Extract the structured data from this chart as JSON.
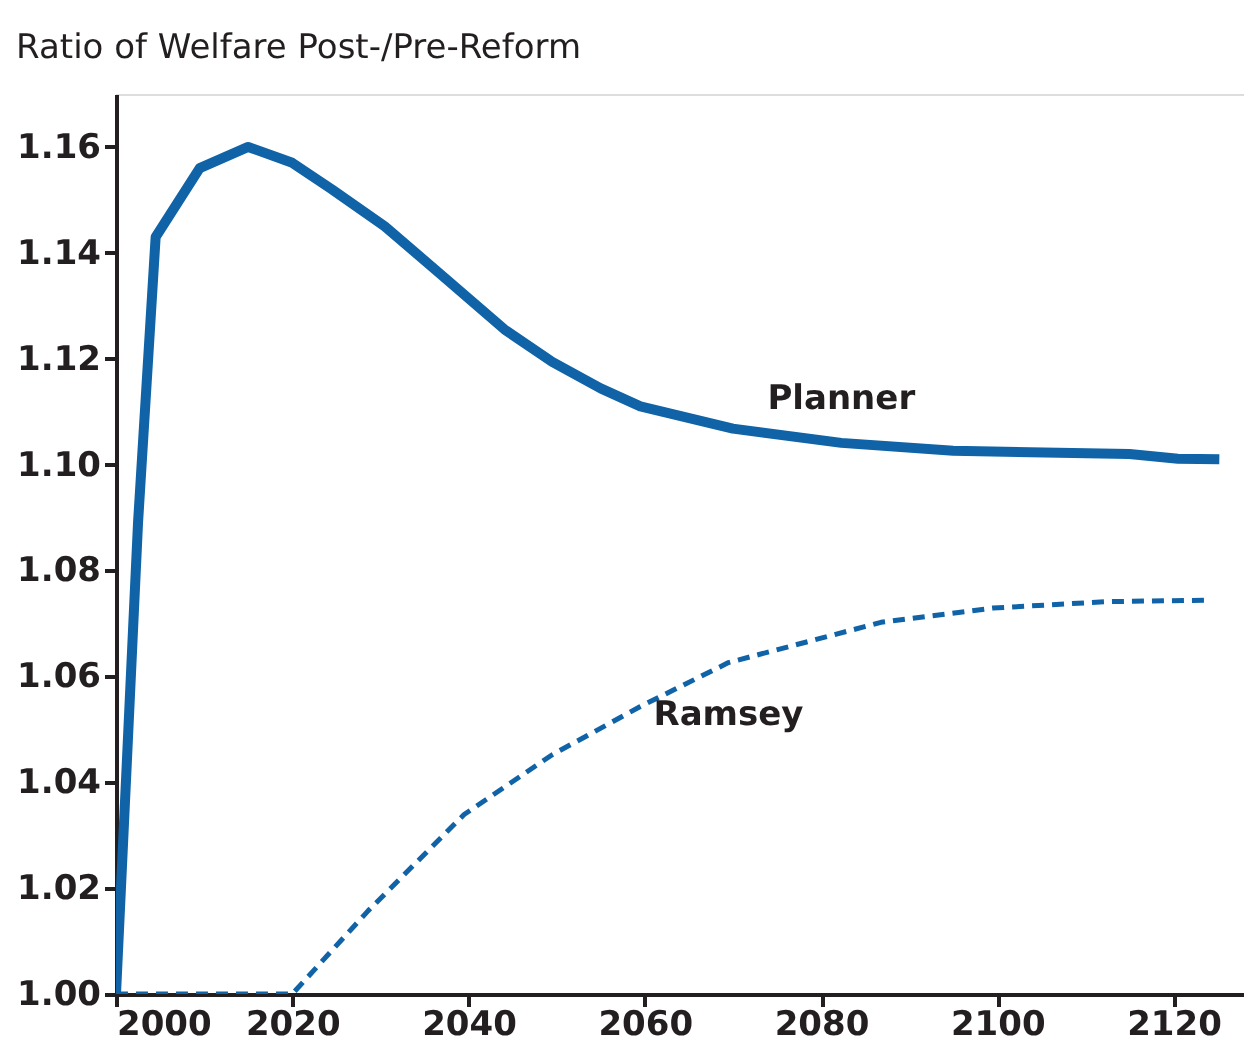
{
  "chart_data": {
    "type": "line",
    "title": "Ratio of Welfare Post-/Pre-Reform",
    "xlim": [
      2000,
      2128
    ],
    "xticks": [
      2000,
      2020,
      2040,
      2060,
      2080,
      2100,
      2120
    ],
    "ylim": [
      1.0,
      1.17
    ],
    "yticks": [
      {
        "value": 1.0,
        "label": "1.00"
      },
      {
        "value": 1.02,
        "label": "1.02"
      },
      {
        "value": 1.04,
        "label": "1.04"
      },
      {
        "value": 1.06,
        "label": "1.06"
      },
      {
        "value": 1.08,
        "label": "1.08"
      },
      {
        "value": 1.1,
        "label": "1.10"
      },
      {
        "value": 1.12,
        "label": "1.12"
      },
      {
        "value": 1.14,
        "label": "1.14"
      },
      {
        "value": 1.16,
        "label": "1.16"
      }
    ],
    "grid": false,
    "marker": "none",
    "series": [
      {
        "name": "Planner",
        "color": "#0f63a6",
        "line_style": "solid",
        "x": [
          2000,
          2002.5,
          2004.5,
          2009.5,
          2015,
          2020,
          2024.5,
          2030.5,
          2036.8,
          2044.1,
          2049.5,
          2055,
          2059.5,
          2070,
          2082.3,
          2095,
          2115,
          2120.5,
          2125.2
        ],
        "values": [
          1.0,
          1.089,
          1.143,
          1.156,
          1.16,
          1.157,
          1.152,
          1.145,
          1.136,
          1.1255,
          1.1194,
          1.1144,
          1.111,
          1.1068,
          1.1041,
          1.1026,
          1.102,
          1.1011,
          1.101
        ]
      },
      {
        "name": "Ramsey",
        "color": "#0f63a6",
        "line_style": "dashed",
        "x": [
          2000,
          2020,
          2028.6,
          2039.5,
          2049.5,
          2059.5,
          2069.5,
          2086.8,
          2099.5,
          2112.3,
          2124.1
        ],
        "values": [
          1.0,
          1.0,
          1.0157,
          1.0339,
          1.0452,
          1.0543,
          1.0626,
          1.0702,
          1.0729,
          1.0741,
          1.0744
        ]
      }
    ]
  }
}
